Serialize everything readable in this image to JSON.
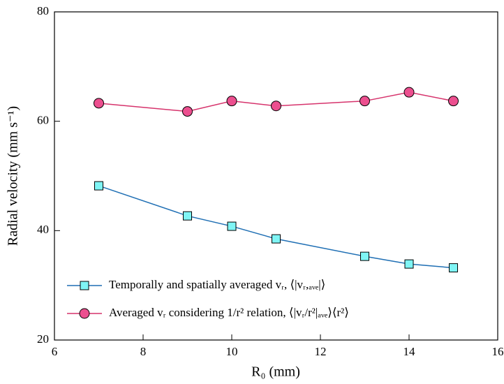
{
  "chart_data": {
    "type": "line",
    "x_label": "R₀ (mm)",
    "y_label": "Radial velocity (mm s⁻¹)",
    "x": [
      7,
      9,
      10,
      11,
      13,
      14,
      15
    ],
    "series": [
      {
        "name": "Temporally and spatially averaged vᵣ, ⟨|vᵣ,ₐᵥₑ|⟩",
        "color": "#1f6fb4",
        "marker_fill": "#7ff5f5",
        "marker": "square",
        "values": [
          48.2,
          42.7,
          40.8,
          38.5,
          35.3,
          33.9,
          33.2
        ]
      },
      {
        "name": "Averaged vᵣ considering 1/r² relation, ⟨|vᵣ/r²|ₐᵥₑ⟩⟨r²⟩",
        "color": "#d6336c",
        "marker_fill": "#ec4f8f",
        "marker": "circle",
        "values": [
          63.3,
          61.8,
          63.7,
          62.8,
          63.7,
          65.3,
          63.7
        ]
      }
    ],
    "xlim": [
      6,
      16
    ],
    "xticks": [
      6,
      8,
      10,
      12,
      14,
      16
    ],
    "ylim": [
      20,
      80
    ],
    "yticks": [
      20,
      40,
      60,
      80
    ],
    "legend": "lower left"
  }
}
